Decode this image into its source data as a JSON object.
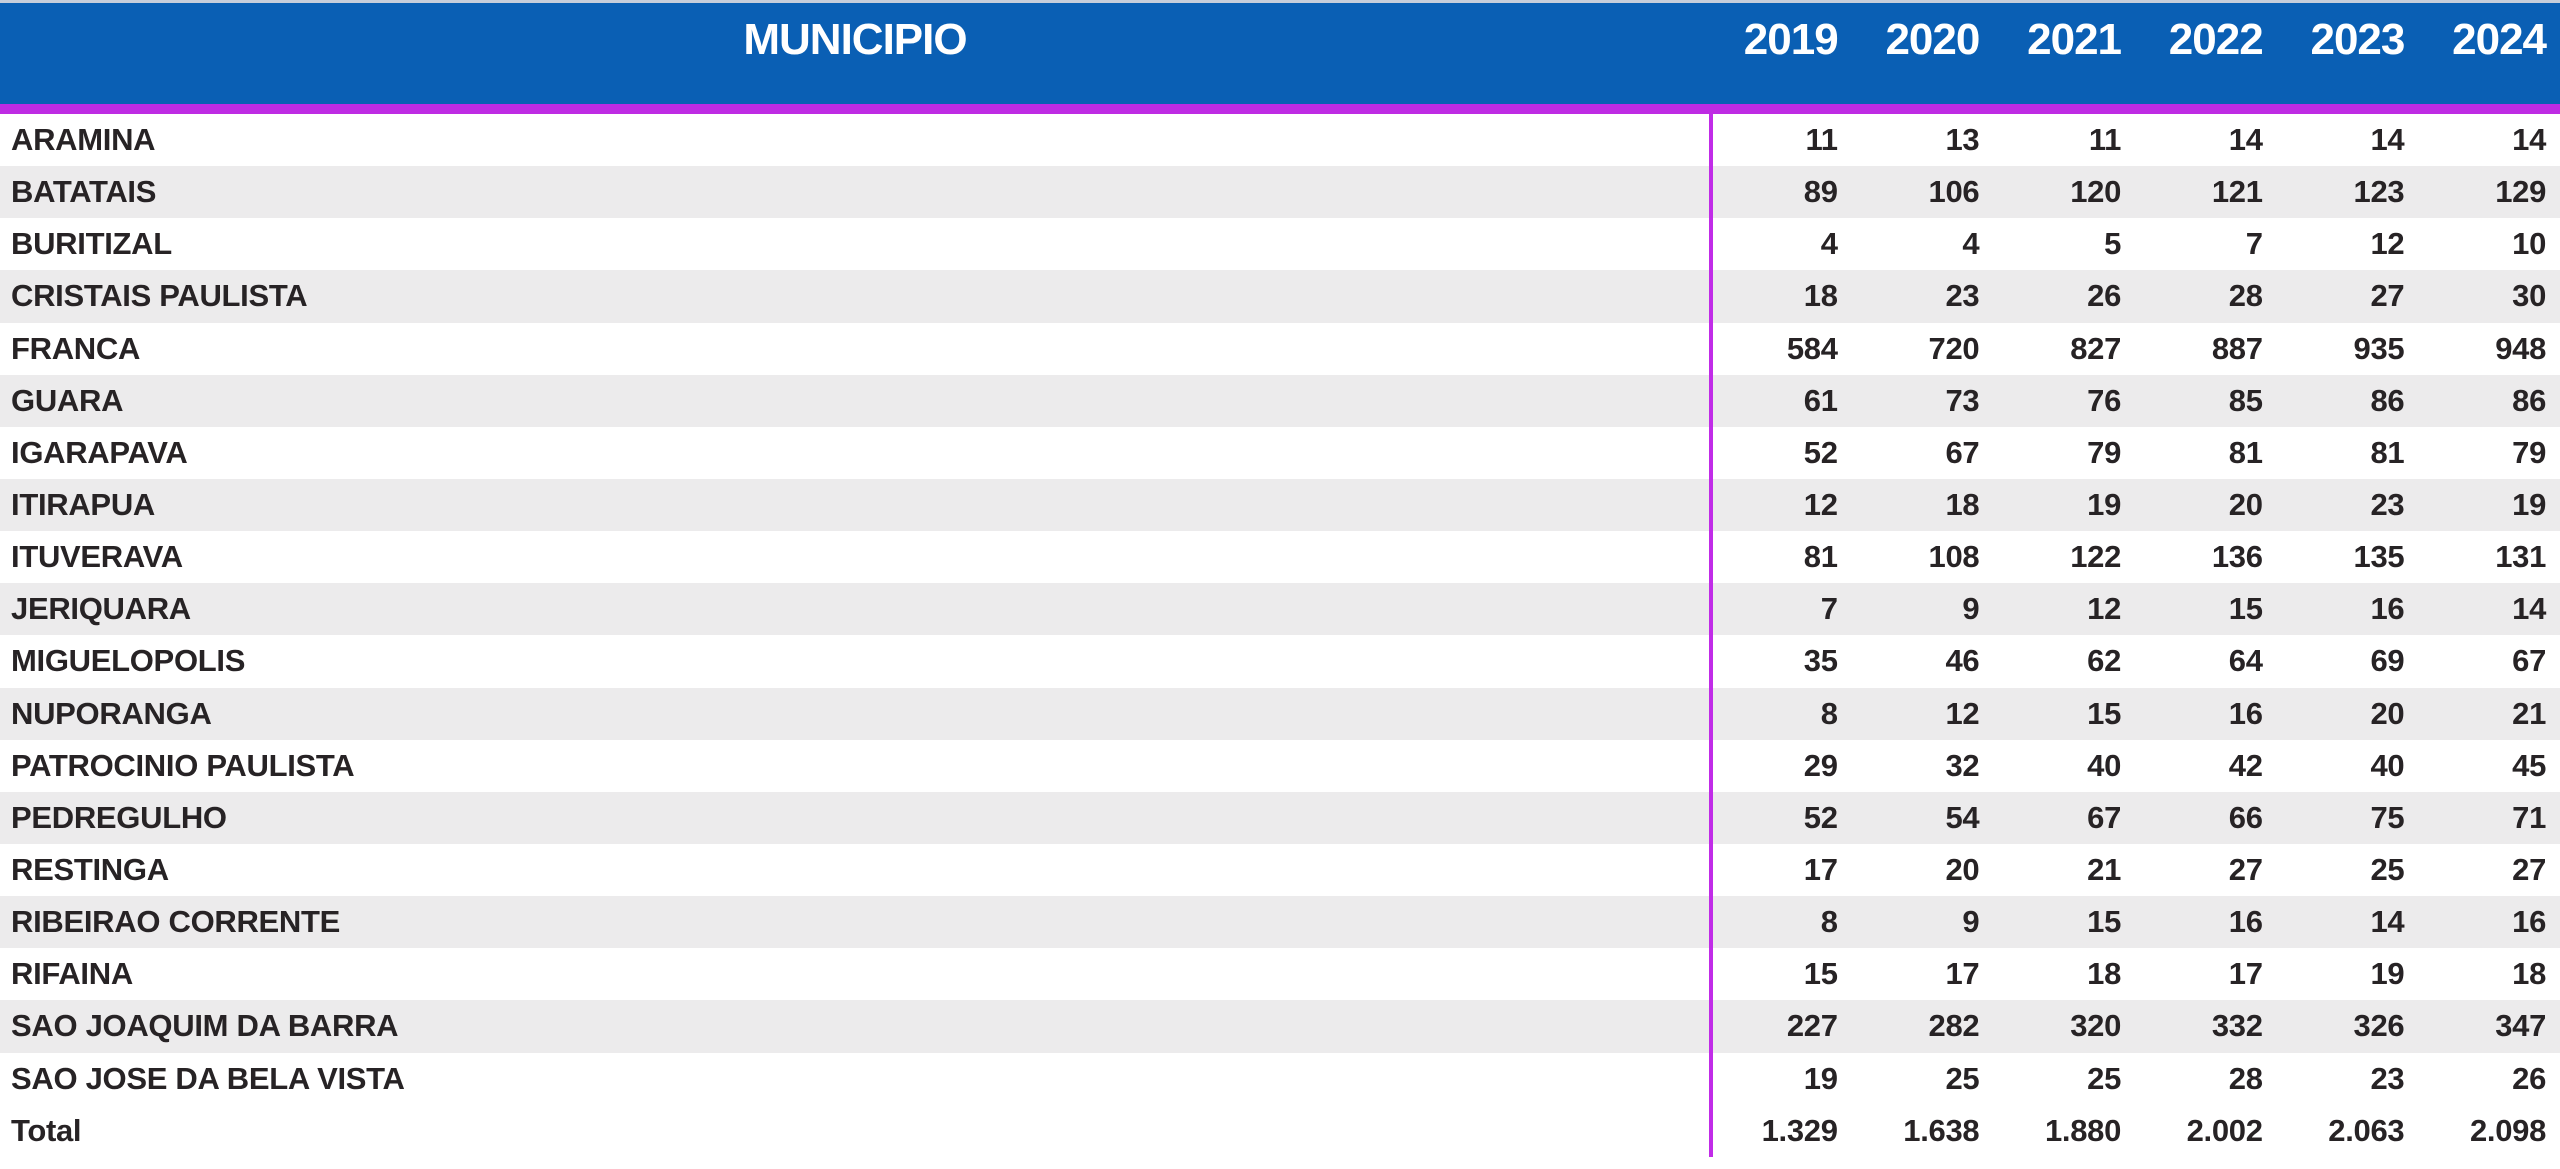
{
  "table": {
    "header": {
      "municipio_label": "MUNICIPIO",
      "years": [
        "2019",
        "2020",
        "2021",
        "2022",
        "2023",
        "2024"
      ]
    },
    "rows": [
      {
        "municipio": "ARAMINA",
        "values": [
          "11",
          "13",
          "11",
          "14",
          "14",
          "14"
        ]
      },
      {
        "municipio": "BATATAIS",
        "values": [
          "89",
          "106",
          "120",
          "121",
          "123",
          "129"
        ]
      },
      {
        "municipio": "BURITIZAL",
        "values": [
          "4",
          "4",
          "5",
          "7",
          "12",
          "10"
        ]
      },
      {
        "municipio": "CRISTAIS PAULISTA",
        "values": [
          "18",
          "23",
          "26",
          "28",
          "27",
          "30"
        ]
      },
      {
        "municipio": "FRANCA",
        "values": [
          "584",
          "720",
          "827",
          "887",
          "935",
          "948"
        ]
      },
      {
        "municipio": "GUARA",
        "values": [
          "61",
          "73",
          "76",
          "85",
          "86",
          "86"
        ]
      },
      {
        "municipio": "IGARAPAVA",
        "values": [
          "52",
          "67",
          "79",
          "81",
          "81",
          "79"
        ]
      },
      {
        "municipio": "ITIRAPUA",
        "values": [
          "12",
          "18",
          "19",
          "20",
          "23",
          "19"
        ]
      },
      {
        "municipio": "ITUVERAVA",
        "values": [
          "81",
          "108",
          "122",
          "136",
          "135",
          "131"
        ]
      },
      {
        "municipio": "JERIQUARA",
        "values": [
          "7",
          "9",
          "12",
          "15",
          "16",
          "14"
        ]
      },
      {
        "municipio": "MIGUELOPOLIS",
        "values": [
          "35",
          "46",
          "62",
          "64",
          "69",
          "67"
        ]
      },
      {
        "municipio": "NUPORANGA",
        "values": [
          "8",
          "12",
          "15",
          "16",
          "20",
          "21"
        ]
      },
      {
        "municipio": "PATROCINIO PAULISTA",
        "values": [
          "29",
          "32",
          "40",
          "42",
          "40",
          "45"
        ]
      },
      {
        "municipio": "PEDREGULHO",
        "values": [
          "52",
          "54",
          "67",
          "66",
          "75",
          "71"
        ]
      },
      {
        "municipio": "RESTINGA",
        "values": [
          "17",
          "20",
          "21",
          "27",
          "25",
          "27"
        ]
      },
      {
        "municipio": "RIBEIRAO CORRENTE",
        "values": [
          "8",
          "9",
          "15",
          "16",
          "14",
          "16"
        ]
      },
      {
        "municipio": "RIFAINA",
        "values": [
          "15",
          "17",
          "18",
          "17",
          "19",
          "18"
        ]
      },
      {
        "municipio": "SAO JOAQUIM DA BARRA",
        "values": [
          "227",
          "282",
          "320",
          "332",
          "326",
          "347"
        ]
      },
      {
        "municipio": "SAO JOSE DA BELA VISTA",
        "values": [
          "19",
          "25",
          "25",
          "28",
          "23",
          "26"
        ]
      },
      {
        "municipio": "Total",
        "values": [
          "1.329",
          "1.638",
          "1.880",
          "2.002",
          "2.063",
          "2.098"
        ],
        "is_total": true
      }
    ],
    "colors": {
      "header_bg": "#0A5FB4",
      "header_text": "#FFFFFF",
      "accent_line": "#C12BE8",
      "alt_row_bg": "#ECEBEC",
      "row_bg": "#FFFFFF",
      "text": "#272325"
    }
  },
  "chart_data": {
    "type": "table",
    "title": "MUNICIPIO",
    "columns": [
      "MUNICIPIO",
      "2019",
      "2020",
      "2021",
      "2022",
      "2023",
      "2024"
    ],
    "rows": [
      {
        "municipio": "ARAMINA",
        "values": [
          11,
          13,
          11,
          14,
          14,
          14
        ]
      },
      {
        "municipio": "BATATAIS",
        "values": [
          89,
          106,
          120,
          121,
          123,
          129
        ]
      },
      {
        "municipio": "BURITIZAL",
        "values": [
          4,
          4,
          5,
          7,
          12,
          10
        ]
      },
      {
        "municipio": "CRISTAIS PAULISTA",
        "values": [
          18,
          23,
          26,
          28,
          27,
          30
        ]
      },
      {
        "municipio": "FRANCA",
        "values": [
          584,
          720,
          827,
          887,
          935,
          948
        ]
      },
      {
        "municipio": "GUARA",
        "values": [
          61,
          73,
          76,
          85,
          86,
          86
        ]
      },
      {
        "municipio": "IGARAPAVA",
        "values": [
          52,
          67,
          79,
          81,
          81,
          79
        ]
      },
      {
        "municipio": "ITIRAPUA",
        "values": [
          12,
          18,
          19,
          20,
          23,
          19
        ]
      },
      {
        "municipio": "ITUVERAVA",
        "values": [
          81,
          108,
          122,
          136,
          135,
          131
        ]
      },
      {
        "municipio": "JERIQUARA",
        "values": [
          7,
          9,
          12,
          15,
          16,
          14
        ]
      },
      {
        "municipio": "MIGUELOPOLIS",
        "values": [
          35,
          46,
          62,
          64,
          69,
          67
        ]
      },
      {
        "municipio": "NUPORANGA",
        "values": [
          8,
          12,
          15,
          16,
          20,
          21
        ]
      },
      {
        "municipio": "PATROCINIO PAULISTA",
        "values": [
          29,
          32,
          40,
          42,
          40,
          45
        ]
      },
      {
        "municipio": "PEDREGULHO",
        "values": [
          52,
          54,
          67,
          66,
          75,
          71
        ]
      },
      {
        "municipio": "RESTINGA",
        "values": [
          17,
          20,
          21,
          27,
          25,
          27
        ]
      },
      {
        "municipio": "RIBEIRAO CORRENTE",
        "values": [
          8,
          9,
          15,
          16,
          14,
          16
        ]
      },
      {
        "municipio": "RIFAINA",
        "values": [
          15,
          17,
          18,
          17,
          19,
          18
        ]
      },
      {
        "municipio": "SAO JOAQUIM DA BARRA",
        "values": [
          227,
          282,
          320,
          332,
          326,
          347
        ]
      },
      {
        "municipio": "SAO JOSE DA BELA VISTA",
        "values": [
          19,
          25,
          25,
          28,
          23,
          26
        ]
      }
    ],
    "totals": {
      "label": "Total",
      "values": [
        1329,
        1638,
        1880,
        2002,
        2063,
        2098
      ]
    },
    "number_format": "thousands separator '.' (pt-BR)",
    "layout": {
      "striped_rows": true,
      "value_alignment": "right",
      "header_alignment_title": "center",
      "header_alignment_years": "right"
    }
  }
}
